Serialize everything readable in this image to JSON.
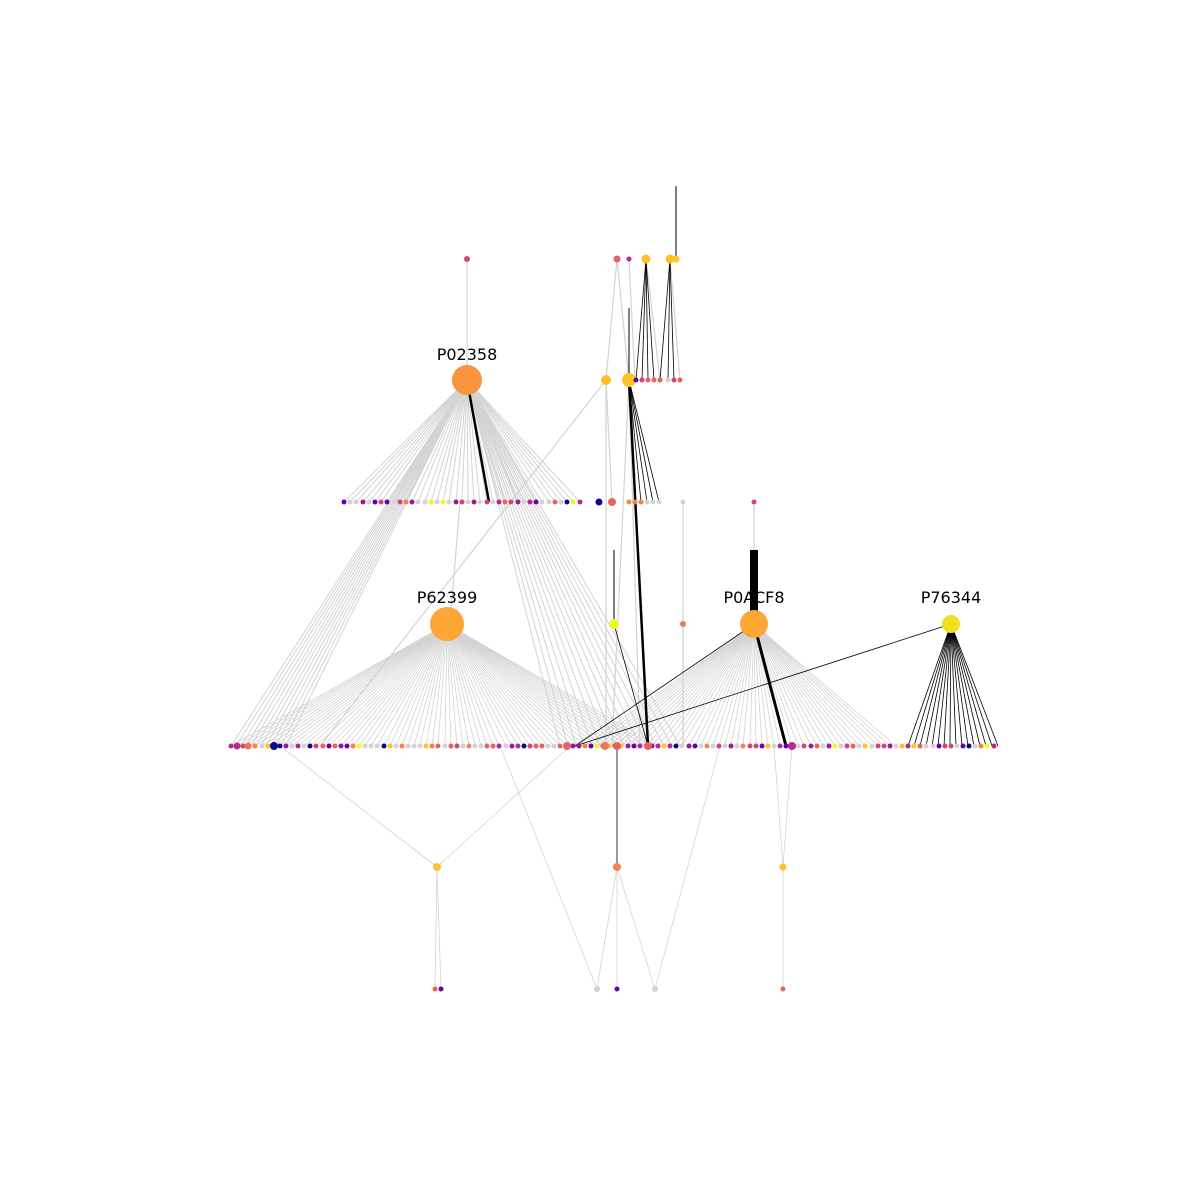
{
  "hubs": [
    {
      "id": "P02358",
      "label": "P02358",
      "color": "#f89540"
    },
    {
      "id": "P62399",
      "label": "P62399",
      "color": "#fca636"
    },
    {
      "id": "P0ACF8",
      "label": "P0ACF8",
      "color": "#fca636"
    },
    {
      "id": "P76344",
      "label": "P76344",
      "color": "#f0e020"
    }
  ],
  "colors": {
    "edge_default": "#d3d3d3",
    "edge_highlight": "#000000",
    "node_gray": "#d3d3d3",
    "palette": [
      "#e16462",
      "#f2844b",
      "#cc4778",
      "#b12a90",
      "#9c179e",
      "#6a00a8",
      "#0d0887",
      "#fdc328",
      "#f0f921",
      "#d3d3d3",
      "#ed7953"
    ]
  }
}
